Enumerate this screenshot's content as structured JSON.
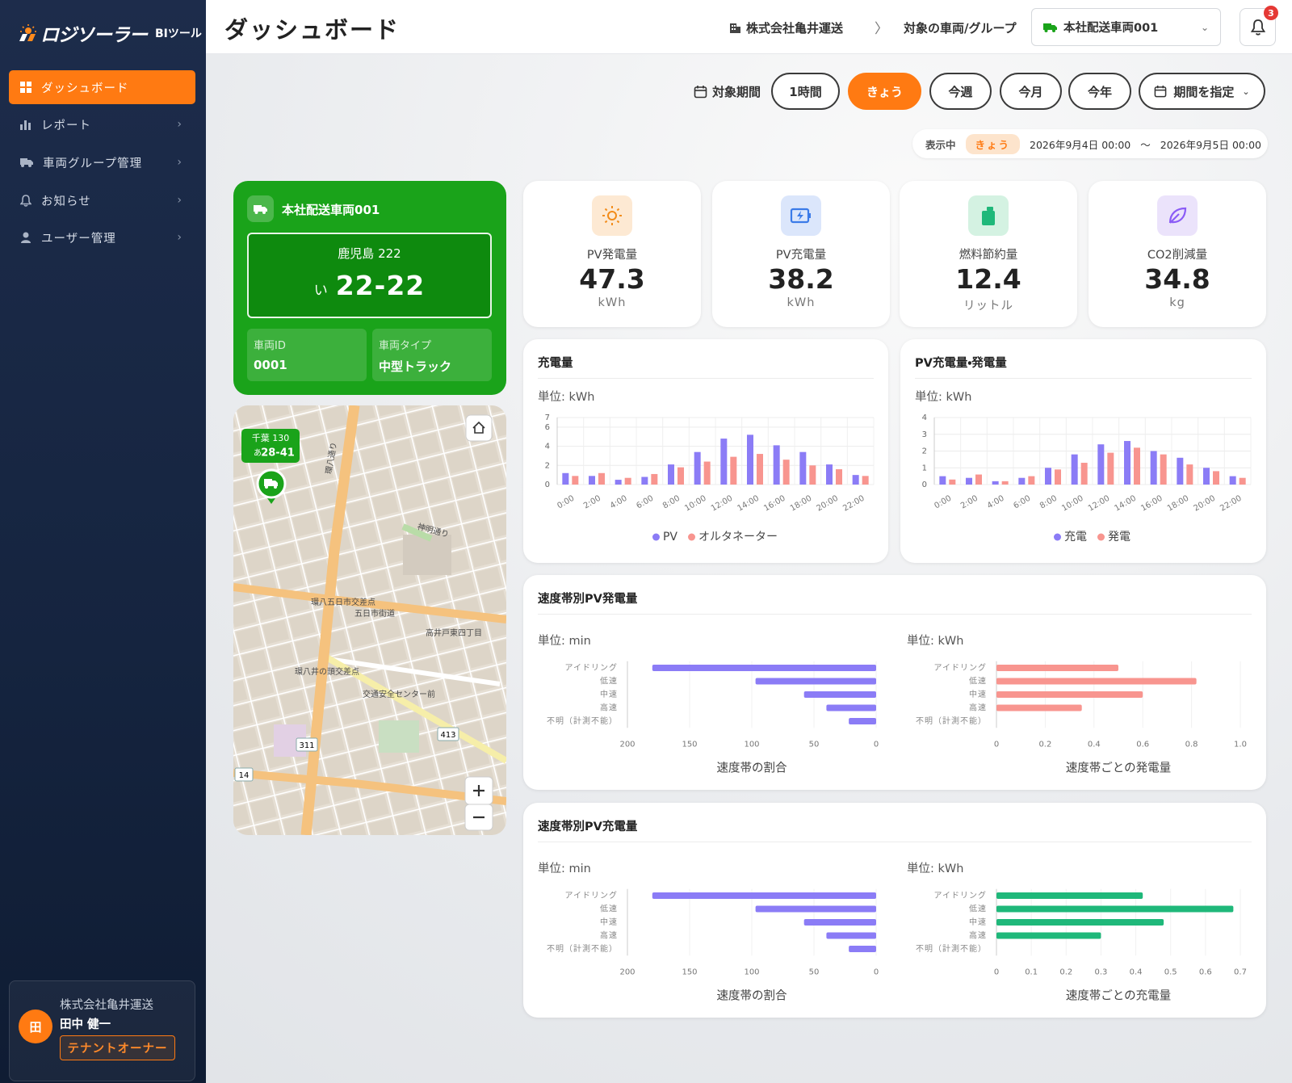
{
  "sidebar": {
    "logo": "ロジソーラー",
    "logo_sub": "BIツール",
    "menu": [
      "ダッシュボード",
      "レポート",
      "車両グループ管理",
      "お知らせ",
      "ユーザー管理"
    ],
    "user": {
      "company": "株式会社亀井運送",
      "avatar": "田",
      "name": "田中 健一",
      "role": "テナントオーナー"
    }
  },
  "header": {
    "title": "ダッシュボード",
    "company": "株式会社亀井運送",
    "target_label": "対象の車両/グループ",
    "vehicle": "本社配送車両001",
    "notifications": 3
  },
  "period": {
    "label": "対象期間",
    "options": [
      {
        "label": "1時間",
        "active": false
      },
      {
        "label": "きょう",
        "active": true
      },
      {
        "label": "今週",
        "active": false
      },
      {
        "label": "今月",
        "active": false
      },
      {
        "label": "今年",
        "active": false
      }
    ],
    "custom": "期間を指定"
  },
  "display": {
    "label": "表示中",
    "badge": "きょう",
    "from": "2026年9月4日 00:00",
    "separator": "〜",
    "to": "2026年9月5日 00:00"
  },
  "vehicle_card": {
    "name": "本社配送車両001",
    "plate_region": "鹿児島 222",
    "plate_kana": "い",
    "plate_number": "22-22",
    "fields": [
      {
        "label": "車両ID",
        "value": "0001"
      },
      {
        "label": "車両タイプ",
        "value": "中型トラック"
      }
    ]
  },
  "map": {
    "marker_plate_region": "千葉 130",
    "marker_plate_kana": "あ",
    "marker_plate_number": "28-41",
    "labels": [
      "環八通り",
      "神明通り",
      "高井戸東四丁目",
      "五日市街道",
      "環八五日市交差点",
      "環八井の頭交差点",
      "交通安全センター前",
      "413",
      "311",
      "14"
    ]
  },
  "kpis": [
    {
      "label": "PV発電量",
      "value": 47.3,
      "unit": "kWh"
    },
    {
      "label": "PV充電量",
      "value": 38.2,
      "unit": "kWh"
    },
    {
      "label": "燃料節約量",
      "value": 12.4,
      "unit": "リットル"
    },
    {
      "label": "CO2削減量",
      "value": 34.8,
      "unit": "kg"
    }
  ],
  "chart_data": [
    {
      "type": "bar",
      "title": "充電量",
      "unit_label": "単位: kWh",
      "categories": [
        "0:00",
        "2:00",
        "4:00",
        "6:00",
        "8:00",
        "10:00",
        "12:00",
        "14:00",
        "16:00",
        "18:00",
        "20:00",
        "22:00"
      ],
      "series": [
        {
          "name": "PV",
          "color": "#8b7cf6",
          "values": [
            1.2,
            0.9,
            0.5,
            0.8,
            2.1,
            3.4,
            4.8,
            5.2,
            4.1,
            3.4,
            2.1,
            1.0
          ]
        },
        {
          "name": "オルタネーター",
          "color": "#f8958f",
          "values": [
            0.9,
            1.2,
            0.7,
            1.1,
            1.8,
            2.4,
            2.9,
            3.2,
            2.6,
            2.0,
            1.6,
            0.9
          ]
        }
      ],
      "ylim": [
        0,
        7
      ],
      "yticks": [
        0,
        2,
        4,
        6,
        7
      ],
      "grid": true,
      "legend": "bottom"
    },
    {
      "type": "bar",
      "title": "PV充電量・発電量",
      "unit_label": "単位: kWh",
      "categories": [
        "0:00",
        "2:00",
        "4:00",
        "6:00",
        "8:00",
        "10:00",
        "12:00",
        "14:00",
        "16:00",
        "18:00",
        "20:00",
        "22:00"
      ],
      "series": [
        {
          "name": "充電",
          "color": "#8b7cf6",
          "values": [
            0.5,
            0.4,
            0.2,
            0.4,
            1.0,
            1.8,
            2.4,
            2.6,
            2.0,
            1.6,
            1.0,
            0.5
          ]
        },
        {
          "name": "発電",
          "color": "#f8958f",
          "values": [
            0.3,
            0.6,
            0.2,
            0.5,
            0.9,
            1.3,
            1.9,
            2.2,
            1.8,
            1.2,
            0.8,
            0.4
          ]
        }
      ],
      "ylim": [
        0,
        4
      ],
      "yticks": [
        0,
        1,
        2,
        3,
        4
      ],
      "grid": true,
      "legend": "bottom"
    },
    {
      "type": "hbar",
      "title": "速度帯別PV発電量",
      "unit_label": "単位: min",
      "xlabel": "速度帯の割合",
      "categories": [
        "アイドリング",
        "低速",
        "中速",
        "高速",
        "不明（計測不能）"
      ],
      "values": [
        180,
        97,
        58,
        40,
        22
      ],
      "color": "#8b7cf6",
      "xlim": [
        200,
        0
      ],
      "xticks": [
        200,
        150,
        100,
        50,
        0
      ],
      "grid": true
    },
    {
      "type": "hbar",
      "unit_label": "単位: kWh",
      "xlabel": "速度帯ごとの発電量",
      "categories": [
        "アイドリング",
        "低速",
        "中速",
        "高速",
        "不明（計測不能）"
      ],
      "values": [
        0.5,
        0.82,
        0.6,
        0.35,
        0
      ],
      "color": "#f8958f",
      "xlim": [
        0,
        1
      ],
      "xticks": [
        0,
        0.2,
        0.4,
        0.6,
        0.8,
        {
          "value": 1,
          "label": "1.0"
        }
      ],
      "grid": true
    },
    {
      "type": "hbar",
      "title": "速度帯別PV充電量",
      "unit_label": "単位: min",
      "xlabel": "速度帯の割合",
      "categories": [
        "アイドリング",
        "低速",
        "中速",
        "高速",
        "不明（計測不能）"
      ],
      "values": [
        180,
        97,
        58,
        40,
        22
      ],
      "color": "#8b7cf6",
      "xlim": [
        200,
        0
      ],
      "xticks": [
        200,
        150,
        100,
        50,
        0
      ],
      "grid": true
    },
    {
      "type": "hbar",
      "unit_label": "単位: kWh",
      "xlabel": "速度帯ごとの充電量",
      "categories": [
        "アイドリング",
        "低速",
        "中速",
        "高速",
        "不明（計測不能）"
      ],
      "values": [
        0.42,
        0.68,
        0.48,
        0.3,
        0
      ],
      "color": "#1fb87a",
      "xlim": [
        0,
        0.7
      ],
      "xticks": [
        0,
        0.1,
        0.2,
        0.3,
        0.4,
        0.5,
        0.6,
        0.7
      ],
      "grid": true
    }
  ]
}
